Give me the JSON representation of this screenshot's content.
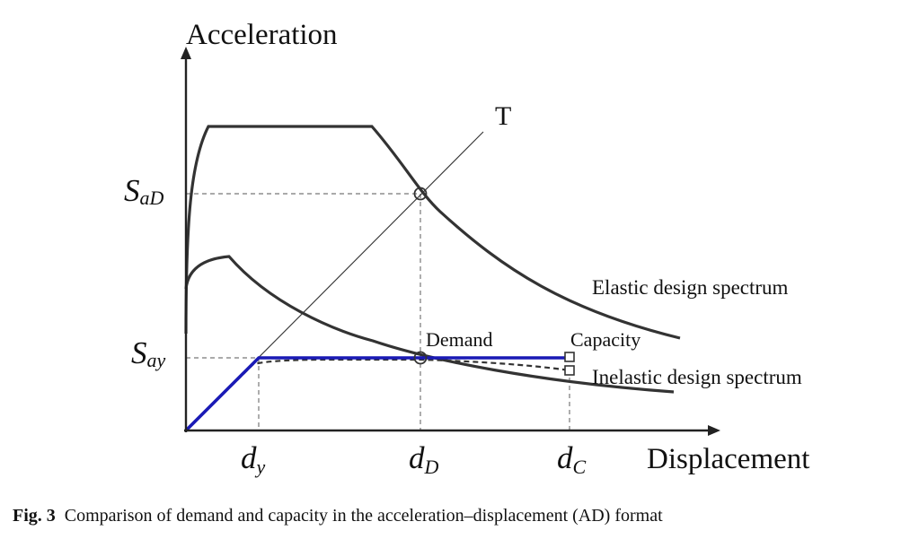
{
  "figure": {
    "y_axis_title": "Acceleration",
    "x_axis_title": "Displacement",
    "period_line_label": "T",
    "elastic_spectrum_label": "Elastic design spectrum",
    "inelastic_spectrum_label": "Inelastic design spectrum",
    "demand_label": "Demand",
    "capacity_label": "Capacity",
    "y_ticks": [
      {
        "symbol": "S",
        "subscript": "aD"
      },
      {
        "symbol": "S",
        "subscript": "ay"
      }
    ],
    "x_ticks": [
      {
        "symbol": "d",
        "subscript": "y"
      },
      {
        "symbol": "d",
        "subscript": "D"
      },
      {
        "symbol": "d",
        "subscript": "C"
      }
    ],
    "colors": {
      "curves": "#333333",
      "capacity_curve": "#1a1ab5",
      "guide_lines": "#777777"
    }
  },
  "caption": {
    "number": "Fig. 3",
    "text": "Comparison of demand and capacity in the acceleration–displacement (AD) format"
  }
}
